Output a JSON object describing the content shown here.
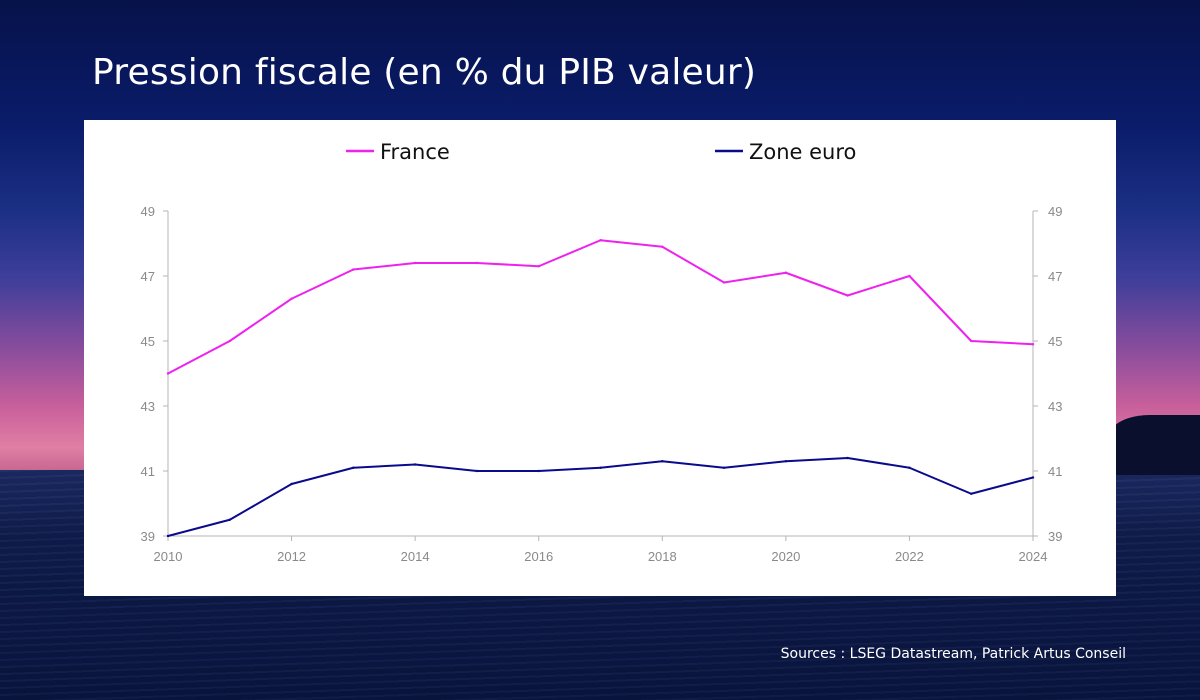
{
  "title": "Pression fiscale (en % du PIB valeur)",
  "source": "Sources : LSEG Datastream, Patrick Artus Conseil",
  "chart_data": {
    "type": "line",
    "title": "",
    "xlabel": "",
    "ylabel": "",
    "x": [
      2010,
      2011,
      2012,
      2013,
      2014,
      2015,
      2016,
      2017,
      2018,
      2019,
      2020,
      2021,
      2022,
      2023,
      2024
    ],
    "xticks": [
      "2010",
      "2012",
      "2014",
      "2016",
      "2018",
      "2020",
      "2022",
      "2024"
    ],
    "yticks_left": [
      "39",
      "41",
      "43",
      "45",
      "47",
      "49"
    ],
    "yticks_right": [
      "39",
      "41",
      "43",
      "45",
      "47",
      "49"
    ],
    "ylim": [
      39,
      49
    ],
    "xlim": [
      2010,
      2024
    ],
    "grid": false,
    "legend_position": "top",
    "series": [
      {
        "name": "France",
        "color": "#ee22ee",
        "values": [
          44.0,
          45.0,
          46.3,
          47.2,
          47.4,
          47.4,
          47.3,
          48.1,
          47.9,
          46.8,
          47.1,
          46.4,
          47.0,
          45.0,
          44.9
        ]
      },
      {
        "name": "Zone euro",
        "color": "#0a0a8c",
        "values": [
          39.0,
          39.5,
          40.6,
          41.1,
          41.2,
          41.0,
          41.0,
          41.1,
          41.3,
          41.1,
          41.3,
          41.4,
          41.1,
          40.3,
          40.8
        ]
      }
    ]
  }
}
